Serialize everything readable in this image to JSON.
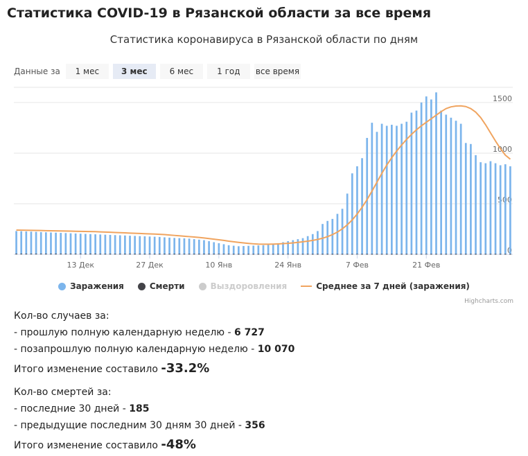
{
  "page_title": "Статистика COVID-19 в Рязанской области за все время",
  "range_selector": {
    "label": "Данные за",
    "buttons": [
      "1 мес",
      "3 мес",
      "6 мес",
      "1 год",
      "все время"
    ],
    "active": "3 мес"
  },
  "legend": [
    {
      "name": "Заражения",
      "color": "#7cb5ec",
      "symbol": "dot",
      "hidden": false
    },
    {
      "name": "Смерти",
      "color": "#434348",
      "symbol": "dot",
      "hidden": false
    },
    {
      "name": "Выздоровления",
      "color": "#cccccc",
      "symbol": "dot",
      "hidden": true
    },
    {
      "name": "Среднее за 7 дней (заражения)",
      "color": "#f0a45f",
      "symbol": "line",
      "hidden": false
    }
  ],
  "credits": "Highcharts.com",
  "chart_data": {
    "type": "bar",
    "title": "Статистика коронавируса в Рязанской области по дням",
    "x_start": "2021-11-30",
    "x_tick_labels": [
      "13 Дек",
      "27 Дек",
      "10 Янв",
      "24 Янв",
      "7 Фев",
      "21 Фев"
    ],
    "x_tick_dates": [
      "2021-12-13",
      "2021-12-27",
      "2022-01-10",
      "2022-01-24",
      "2022-02-07",
      "2022-02-21"
    ],
    "y_ticks": [
      0,
      500,
      1000,
      1500
    ],
    "ylim": [
      0,
      1650
    ],
    "grid": true,
    "legend_position": "bottom",
    "series": [
      {
        "name": "Заражения",
        "type": "column",
        "values": [
          230,
          228,
          226,
          224,
          222,
          220,
          218,
          216,
          214,
          212,
          210,
          208,
          206,
          204,
          202,
          200,
          198,
          196,
          194,
          192,
          190,
          188,
          186,
          184,
          182,
          180,
          178,
          176,
          174,
          172,
          168,
          165,
          162,
          160,
          158,
          155,
          150,
          145,
          140,
          130,
          120,
          110,
          100,
          90,
          85,
          80,
          82,
          84,
          86,
          88,
          90,
          95,
          100,
          110,
          120,
          130,
          140,
          150,
          160,
          180,
          200,
          230,
          300,
          330,
          350,
          400,
          450,
          600,
          800,
          870,
          950,
          1150,
          1300,
          1210,
          1290,
          1270,
          1280,
          1270,
          1290,
          1310,
          1400,
          1420,
          1500,
          1560,
          1530,
          1600,
          1420,
          1380,
          1350,
          1320,
          1290,
          1100,
          1090,
          980,
          910,
          900,
          920,
          900,
          880,
          890,
          870
        ],
        "color": "#7cb5ec"
      },
      {
        "name": "Смерти",
        "type": "column",
        "values": [
          6,
          6,
          6,
          6,
          6,
          6,
          6,
          6,
          6,
          6,
          6,
          6,
          6,
          6,
          6,
          6,
          6,
          5,
          5,
          5,
          5,
          5,
          5,
          5,
          5,
          5,
          5,
          5,
          5,
          5,
          5,
          5,
          5,
          5,
          5,
          5,
          5,
          5,
          5,
          5,
          5,
          5,
          5,
          5,
          4,
          4,
          4,
          4,
          4,
          4,
          4,
          4,
          4,
          4,
          4,
          4,
          4,
          4,
          4,
          4,
          4,
          4,
          4,
          4,
          4,
          4,
          4,
          4,
          4,
          4,
          4,
          4,
          4,
          4,
          4,
          4,
          4,
          4,
          4,
          4,
          4,
          4,
          4,
          4,
          4,
          4,
          4,
          4,
          4,
          4,
          4,
          4,
          4,
          4,
          4,
          4,
          4,
          4,
          4,
          4,
          4
        ],
        "color": "#434348"
      },
      {
        "name": "Среднее за 7 дней (заражения)",
        "type": "line",
        "values": [
          240,
          239,
          238,
          237,
          236,
          235,
          234,
          233,
          232,
          231,
          230,
          229,
          228,
          227,
          226,
          225,
          224,
          222,
          220,
          218,
          216,
          214,
          212,
          210,
          208,
          206,
          204,
          202,
          200,
          198,
          195,
          191,
          187,
          183,
          179,
          175,
          171,
          167,
          162,
          156,
          150,
          144,
          138,
          130,
          124,
          118,
          113,
          108,
          104,
          101,
          100,
          100,
          101,
          103,
          106,
          109,
          113,
          118,
          124,
          130,
          138,
          147,
          159,
          175,
          195,
          220,
          252,
          292,
          340,
          398,
          465,
          540,
          625,
          712,
          800,
          882,
          955,
          1020,
          1080,
          1135,
          1185,
          1230,
          1270,
          1305,
          1340,
          1375,
          1410,
          1440,
          1457,
          1465,
          1467,
          1460,
          1440,
          1405,
          1352,
          1280,
          1200,
          1120,
          1045,
          980,
          940
        ]
      }
    ]
  },
  "stats": {
    "cases": {
      "heading": "Кол-во случаев за:",
      "items": [
        {
          "label": "- прошлую полную календарную неделю - ",
          "value": "6 727"
        },
        {
          "label": "- позапрошлую полную календарную неделю - ",
          "value": "10 070"
        }
      ],
      "total_label": "Итого изменение составило ",
      "total_value": "-33.2%"
    },
    "deaths": {
      "heading": "Кол-во смертей за:",
      "items": [
        {
          "label": "- последние 30 дней - ",
          "value": "185"
        },
        {
          "label": "- предыдущие последним 30 дням 30 дней - ",
          "value": "356"
        }
      ],
      "total_label": "Итого изменение составило ",
      "total_value": "-48%"
    }
  }
}
